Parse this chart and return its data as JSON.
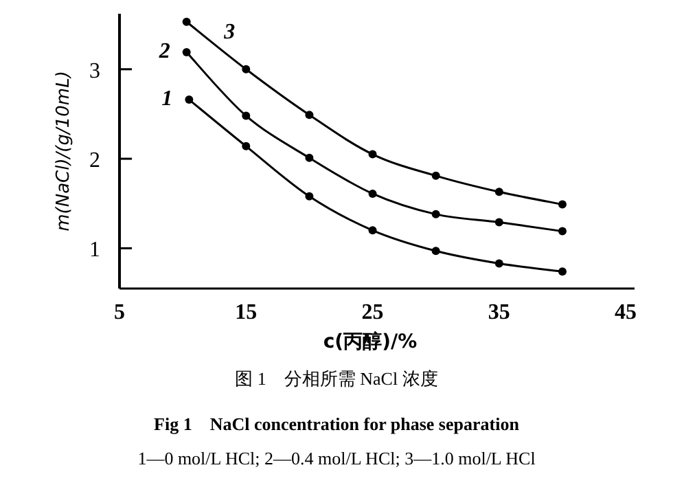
{
  "chart_data": {
    "type": "line",
    "xlabel": "c(丙醇)/%",
    "ylabel": "m(NaCl)/(g/10mL)",
    "xlim": [
      5,
      45.7
    ],
    "ylim": [
      0.55,
      3.62
    ],
    "xticks": [
      5,
      15,
      25,
      35,
      45
    ],
    "yticks": [
      1,
      2,
      3
    ],
    "marker": "circle",
    "line_style": "solid",
    "grid": false,
    "series": [
      {
        "name": "1",
        "color": "#000000",
        "x": [
          10.5,
          15,
          20,
          25,
          30,
          35,
          40
        ],
        "values": [
          2.66,
          2.14,
          1.58,
          1.2,
          0.97,
          0.83,
          0.74
        ]
      },
      {
        "name": "2",
        "color": "#000000",
        "x": [
          10.3,
          15,
          20,
          25,
          30,
          35,
          40
        ],
        "values": [
          3.19,
          2.48,
          2.01,
          1.61,
          1.38,
          1.29,
          1.19
        ]
      },
      {
        "name": "3",
        "color": "#000000",
        "x": [
          10.3,
          15,
          20,
          25,
          30,
          35,
          40
        ],
        "values": [
          3.53,
          3.0,
          2.49,
          2.05,
          1.81,
          1.63,
          1.49
        ]
      }
    ],
    "annotations": [
      "图 1　分相所需 NaCl 浓度",
      "Fig 1　NaCl concentration for phase separation",
      "1—0 mol/L HCl; 2—0.4 mol/L HCl; 3—1.0 mol/L HCl"
    ]
  }
}
